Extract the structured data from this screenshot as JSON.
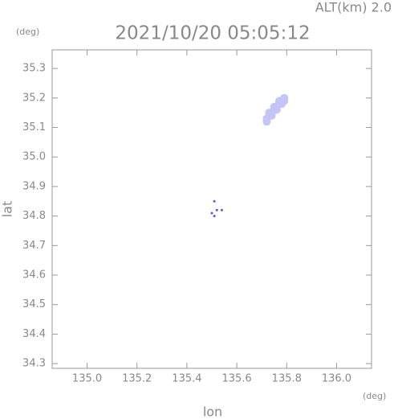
{
  "chart_data": {
    "type": "scatter",
    "title": "2021/10/20 05:05:12",
    "subtitle": "ALT(km) 2.0",
    "y_unit": "(deg)",
    "x_unit": "(deg)",
    "xlabel": "lon",
    "ylabel": "lat",
    "xlim": [
      134.86,
      136.14
    ],
    "ylim": [
      34.284,
      35.363
    ],
    "xticks": [
      {
        "value": 135.0,
        "label": "135.0"
      },
      135.2,
      135.4,
      135.6,
      135.8,
      {
        "value": 136.0,
        "label": "136.0"
      }
    ],
    "yticks": [
      34.3,
      34.4,
      34.5,
      34.6,
      34.7,
      34.8,
      34.9,
      {
        "value": 35.0,
        "label": "35.0"
      },
      35.1,
      35.2,
      35.3
    ],
    "series": [
      {
        "color": "#c4c4f6",
        "x": [
          135.72,
          135.73,
          135.74,
          135.75,
          135.76,
          135.77,
          135.78,
          135.79,
          135.72,
          135.74,
          135.76,
          135.78,
          135.73,
          135.77,
          135.79,
          135.75
        ],
        "values": [
          35.13,
          35.14,
          35.15,
          35.16,
          35.17,
          35.18,
          35.19,
          35.2,
          35.12,
          35.14,
          35.16,
          35.18,
          35.15,
          35.19,
          35.19,
          35.17
        ]
      },
      {
        "color": "#5a5ad8",
        "x": [
          135.5,
          135.51,
          135.52,
          135.54,
          135.51
        ],
        "values": [
          34.81,
          34.8,
          34.82,
          34.82,
          34.85
        ]
      }
    ]
  }
}
